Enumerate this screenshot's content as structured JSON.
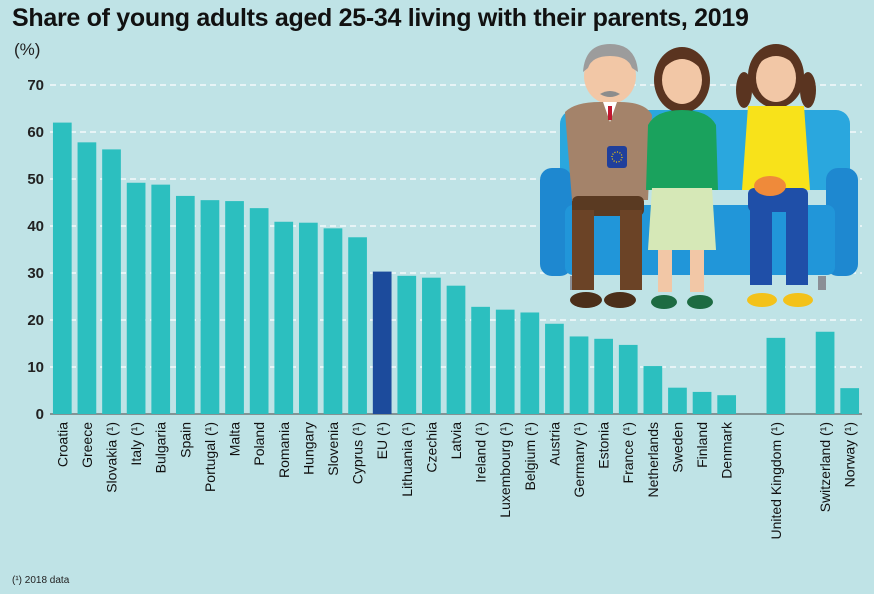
{
  "chart_data": {
    "type": "bar",
    "title": "Share of young adults aged 25-34 living with their parents, 2019",
    "ylabel": "(%)",
    "xlabel": "",
    "ylim": [
      0,
      70
    ],
    "yticks": [
      0,
      10,
      20,
      30,
      40,
      50,
      60,
      70
    ],
    "grid": "horizontal dashed",
    "categories": [
      "Croatia",
      "Greece",
      "Slovakia (¹)",
      "Italy (¹)",
      "Bulgaria",
      "Spain",
      "Portugal (¹)",
      "Malta",
      "Poland",
      "Romania",
      "Hungary",
      "Slovenia",
      "Cyprus (¹)",
      "EU (¹)",
      "Lithuania (¹)",
      "Czechia",
      "Latvia",
      "Ireland (¹)",
      "Luxembourg (¹)",
      "Belgium (¹)",
      "Austria",
      "Germany (¹)",
      "Estonia",
      "France (¹)",
      "Netherlands",
      "Sweden",
      "Finland",
      "Denmark",
      "",
      "United Kingdom (¹)",
      "",
      "Switzerland (¹)",
      "Norway (¹)"
    ],
    "values": [
      62,
      57.8,
      56.3,
      49.2,
      48.8,
      46.4,
      45.5,
      45.3,
      43.8,
      40.9,
      40.7,
      39.5,
      37.6,
      30.3,
      29.4,
      29,
      27.3,
      22.8,
      22.2,
      21.6,
      19.2,
      16.5,
      16,
      14.7,
      10.2,
      5.6,
      4.7,
      4,
      null,
      16.2,
      null,
      17.5,
      5.5
    ],
    "colors": {
      "bar": "#2cbfbf",
      "highlight": "#1c4b9c",
      "highlight_category": "EU (¹)",
      "grid": "#ffffff",
      "background": "#bfe3e6"
    }
  },
  "footnote": "(¹) 2018 data"
}
